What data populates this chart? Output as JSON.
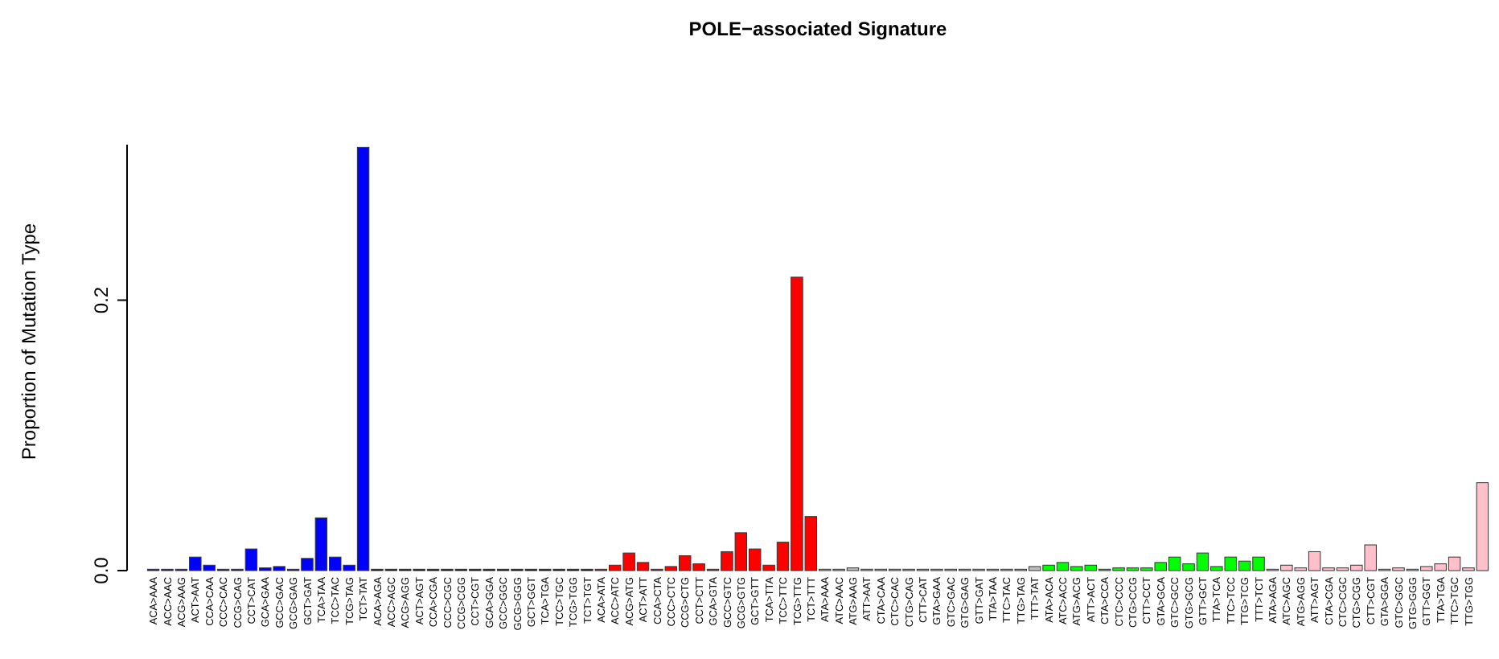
{
  "chart_data": {
    "type": "bar",
    "title": "POLE−associated Signature",
    "ylabel": "Proportion of Mutation Type",
    "categories": [
      "ACA>AAA",
      "ACC>AAC",
      "ACG>AAG",
      "ACT>AAT",
      "CCA>CAA",
      "CCC>CAC",
      "CCG>CAG",
      "CCT>CAT",
      "GCA>GAA",
      "GCC>GAC",
      "GCG>GAG",
      "GCT>GAT",
      "TCA>TAA",
      "TCC>TAC",
      "TCG>TAG",
      "TCT>TAT",
      "ACA>AGA",
      "ACC>AGC",
      "ACG>AGG",
      "ACT>AGT",
      "CCA>CGA",
      "CCC>CGC",
      "CCG>CGG",
      "CCT>CGT",
      "GCA>GGA",
      "GCC>GGC",
      "GCG>GGG",
      "GCT>GGT",
      "TCA>TGA",
      "TCC>TGC",
      "TCG>TGG",
      "TCT>TGT",
      "ACA>ATA",
      "ACC>ATC",
      "ACG>ATG",
      "ACT>ATT",
      "CCA>CTA",
      "CCC>CTC",
      "CCG>CTG",
      "CCT>CTT",
      "GCA>GTA",
      "GCC>GTC",
      "GCG>GTG",
      "GCT>GTT",
      "TCA>TTA",
      "TCC>TTC",
      "TCG>TTG",
      "TCT>TTT",
      "ATA>AAA",
      "ATC>AAC",
      "ATG>AAG",
      "ATT>AAT",
      "CTA>CAA",
      "CTC>CAC",
      "CTG>CAG",
      "CTT>CAT",
      "GTA>GAA",
      "GTC>GAC",
      "GTG>GAG",
      "GTT>GAT",
      "TTA>TAA",
      "TTC>TAC",
      "TTG>TAG",
      "TTT>TAT",
      "ATA>ACA",
      "ATC>ACC",
      "ATG>ACG",
      "ATT>ACT",
      "CTA>CCA",
      "CTC>CCC",
      "CTG>CCG",
      "CTT>CCT",
      "GTA>GCA",
      "GTC>GCC",
      "GTG>GCG",
      "GTT>GCT",
      "TTA>TCA",
      "TTC>TCC",
      "TTG>TCG",
      "TTT>TCT",
      "ATA>AGA",
      "ATC>AGC",
      "ATG>AGG",
      "ATT>AGT",
      "CTA>CGA",
      "CTC>CGC",
      "CTG>CGG",
      "CTT>CGT",
      "GTA>GGA",
      "GTC>GGC",
      "GTG>GGG",
      "GTT>GGT",
      "TTA>TGA",
      "TTC>TGC",
      "TTG>TGG",
      null
    ],
    "values": [
      0.001,
      0.001,
      0.001,
      0.01,
      0.004,
      0.001,
      0.001,
      0.016,
      0.002,
      0.003,
      0.001,
      0.009,
      0.039,
      0.01,
      0.004,
      0.313,
      0.001,
      0.001,
      0.001,
      0.001,
      0.001,
      0.001,
      0.001,
      0.001,
      0.001,
      0.001,
      0.001,
      0.001,
      0.001,
      0.001,
      0.001,
      0.001,
      0.001,
      0.004,
      0.013,
      0.006,
      0.001,
      0.003,
      0.011,
      0.005,
      0.001,
      0.014,
      0.028,
      0.016,
      0.004,
      0.021,
      0.217,
      0.04,
      0.001,
      0.001,
      0.002,
      0.001,
      0.001,
      0.001,
      0.001,
      0.001,
      0.001,
      0.001,
      0.001,
      0.001,
      0.001,
      0.001,
      0.001,
      0.003,
      0.004,
      0.006,
      0.003,
      0.004,
      0.001,
      0.002,
      0.002,
      0.002,
      0.006,
      0.01,
      0.005,
      0.013,
      0.003,
      0.01,
      0.007,
      0.01,
      0.001,
      0.004,
      0.002,
      0.014,
      0.002,
      0.002,
      0.004,
      0.019,
      0.001,
      0.002,
      0.001,
      0.003,
      0.005,
      0.01,
      0.002,
      0.065
    ],
    "colors": [
      "#0000ff",
      "#0000ff",
      "#0000ff",
      "#0000ff",
      "#0000ff",
      "#0000ff",
      "#0000ff",
      "#0000ff",
      "#0000ff",
      "#0000ff",
      "#0000ff",
      "#0000ff",
      "#0000ff",
      "#0000ff",
      "#0000ff",
      "#0000ff",
      "#000000",
      "#000000",
      "#000000",
      "#000000",
      "#000000",
      "#000000",
      "#000000",
      "#000000",
      "#000000",
      "#000000",
      "#000000",
      "#000000",
      "#000000",
      "#000000",
      "#000000",
      "#000000",
      "#ff0000",
      "#ff0000",
      "#ff0000",
      "#ff0000",
      "#ff0000",
      "#ff0000",
      "#ff0000",
      "#ff0000",
      "#ff0000",
      "#ff0000",
      "#ff0000",
      "#ff0000",
      "#ff0000",
      "#ff0000",
      "#ff0000",
      "#ff0000",
      "#bebebe",
      "#bebebe",
      "#bebebe",
      "#bebebe",
      "#bebebe",
      "#bebebe",
      "#bebebe",
      "#bebebe",
      "#bebebe",
      "#bebebe",
      "#bebebe",
      "#bebebe",
      "#bebebe",
      "#bebebe",
      "#bebebe",
      "#bebebe",
      "#00ff00",
      "#00ff00",
      "#00ff00",
      "#00ff00",
      "#00ff00",
      "#00ff00",
      "#00ff00",
      "#00ff00",
      "#00ff00",
      "#00ff00",
      "#00ff00",
      "#00ff00",
      "#00ff00",
      "#00ff00",
      "#00ff00",
      "#00ff00",
      "#ffc0cb",
      "#ffc0cb",
      "#ffc0cb",
      "#ffc0cb",
      "#ffc0cb",
      "#ffc0cb",
      "#ffc0cb",
      "#ffc0cb",
      "#ffc0cb",
      "#ffc0cb",
      "#ffc0cb",
      "#ffc0cb",
      "#ffc0cb",
      "#ffc0cb",
      "#ffc0cb",
      "#ffc0cb"
    ],
    "ylim": [
      0,
      0.315
    ],
    "yticks": [
      {
        "value": 0,
        "label": "0.0"
      },
      {
        "value": 0.2,
        "label": "0.2"
      }
    ],
    "tick_labels": "xy"
  }
}
